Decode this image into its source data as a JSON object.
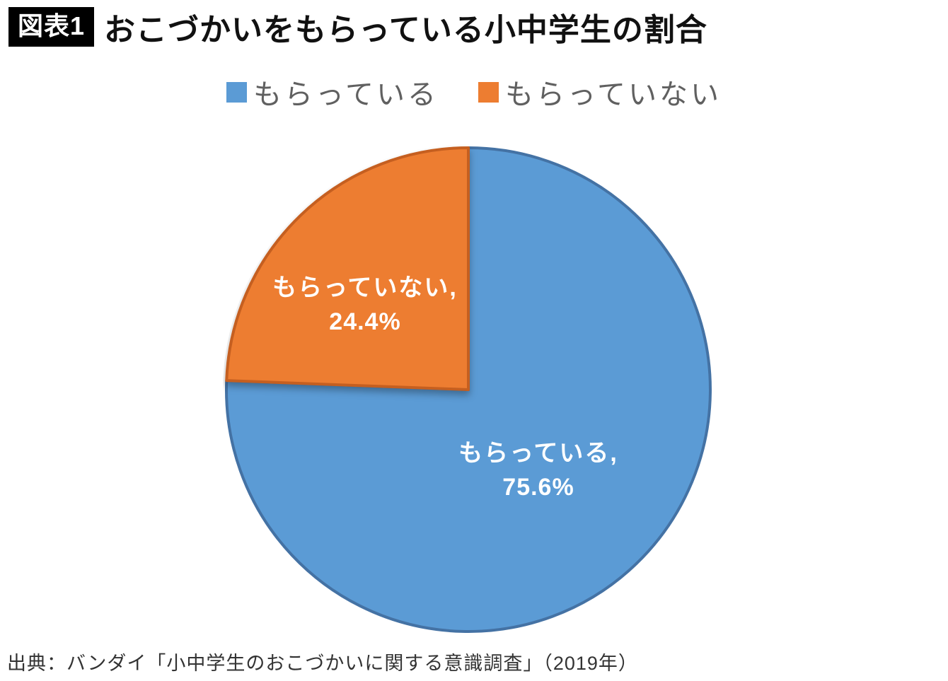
{
  "header": {
    "badge": "図表1",
    "title": "おこづかいをもらっている小中学生の割合"
  },
  "chart_data": {
    "type": "pie",
    "title": "おこづかいをもらっている小中学生の割合",
    "unit": "%",
    "start_angle_deg": -90,
    "direction": "clockwise",
    "legend_position": "top",
    "slices": [
      {
        "label": "もらっている",
        "value": 75.6,
        "display": "もらっている,",
        "percent_label": "75.6%",
        "color": "#5B9BD5",
        "border_color": "#4472A4"
      },
      {
        "label": "もらっていない",
        "value": 24.4,
        "display": "もらっていない,",
        "percent_label": "24.4%",
        "color": "#ED7D31",
        "border_color": "#C55F20"
      }
    ]
  },
  "source": "出典：バンダイ「小中学生のおこづかいに関する意識調査」（2019年）"
}
